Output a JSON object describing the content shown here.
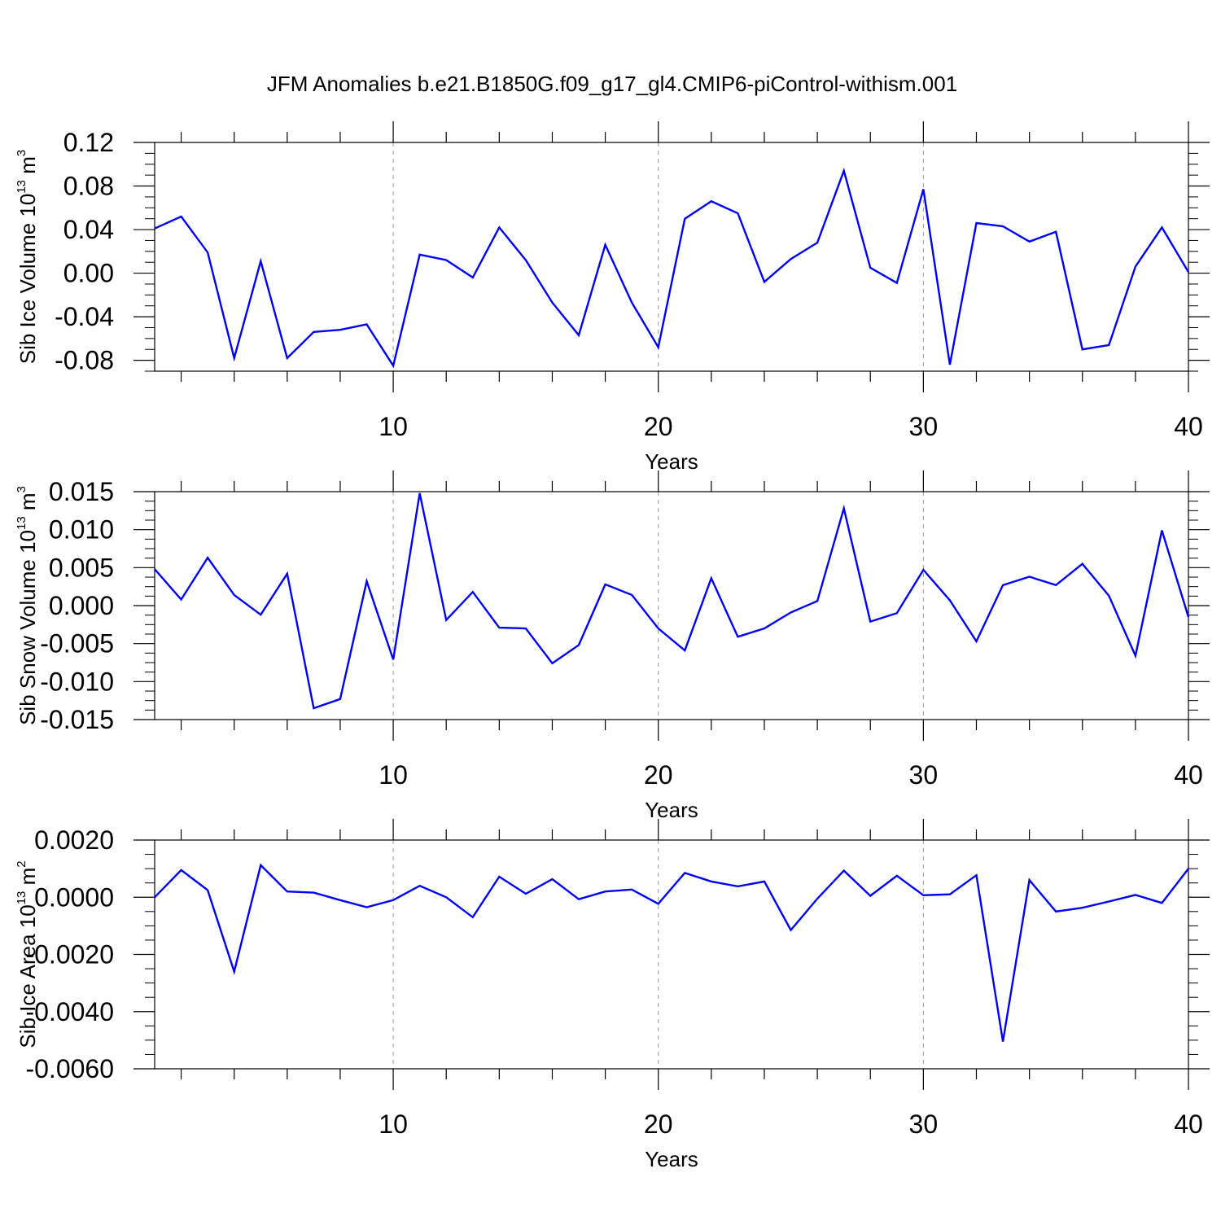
{
  "figure": {
    "title": "JFM Anomalies b.e21.B1850G.f09_g17_gl4.CMIP6-piControl-withism.001"
  },
  "colors": {
    "line": "#0000ff",
    "axis": "#000000",
    "grid": "#999999"
  },
  "chart_data": [
    {
      "type": "line",
      "ylabel_main": "Sib Ice Volume 10",
      "ylabel_exp": "13",
      "ylabel_unit": "m",
      "ylabel_unit_exp": "3",
      "xlabel": "Years",
      "xlim": [
        1,
        40
      ],
      "ylim": [
        -0.09,
        0.12
      ],
      "yticks": [
        0.12,
        0.08,
        0.04,
        0.0,
        -0.04,
        -0.08
      ],
      "ytick_labels": [
        "0.12",
        "0.08",
        "0.04",
        "0.00",
        "-0.04",
        "-0.08"
      ],
      "xticks": [
        10,
        20,
        30,
        40
      ],
      "xtick_labels": [
        "10",
        "20",
        "30",
        "40"
      ],
      "grid": "vertical dashed at 10, 20, 30",
      "x": [
        1,
        2,
        3,
        4,
        5,
        6,
        7,
        8,
        9,
        10,
        11,
        12,
        13,
        14,
        15,
        16,
        17,
        18,
        19,
        20,
        21,
        22,
        23,
        24,
        25,
        26,
        27,
        28,
        29,
        30,
        31,
        32,
        33,
        34,
        35,
        36,
        37,
        38,
        39,
        40
      ],
      "values": [
        0.041,
        0.052,
        0.019,
        -0.078,
        0.011,
        -0.078,
        -0.054,
        -0.052,
        -0.047,
        -0.085,
        0.017,
        0.012,
        -0.004,
        0.042,
        0.012,
        -0.027,
        -0.057,
        0.026,
        -0.027,
        -0.068,
        0.05,
        0.066,
        0.055,
        -0.008,
        0.013,
        0.028,
        0.094,
        0.005,
        -0.009,
        0.077,
        -0.084,
        0.046,
        0.043,
        0.029,
        0.038,
        -0.07,
        -0.066,
        0.006,
        0.042,
        0.001
      ]
    },
    {
      "type": "line",
      "ylabel_main": "Sib Snow Volume 10",
      "ylabel_exp": "13",
      "ylabel_unit": "m",
      "ylabel_unit_exp": "3",
      "xlabel": "Years",
      "xlim": [
        1,
        40
      ],
      "ylim": [
        -0.015,
        0.015
      ],
      "yticks": [
        0.015,
        0.01,
        0.005,
        0.0,
        -0.005,
        -0.01,
        -0.015
      ],
      "ytick_labels": [
        "0.015",
        "0.010",
        "0.005",
        "0.000",
        "-0.005",
        "-0.010",
        "-0.015"
      ],
      "xticks": [
        10,
        20,
        30,
        40
      ],
      "xtick_labels": [
        "10",
        "20",
        "30",
        "40"
      ],
      "grid": "vertical dashed at 10, 20, 30",
      "x": [
        1,
        2,
        3,
        4,
        5,
        6,
        7,
        8,
        9,
        10,
        11,
        12,
        13,
        14,
        15,
        16,
        17,
        18,
        19,
        20,
        21,
        22,
        23,
        24,
        25,
        26,
        27,
        28,
        29,
        30,
        31,
        32,
        33,
        34,
        35,
        36,
        37,
        38,
        39,
        40
      ],
      "values": [
        0.0048,
        0.0008,
        0.0063,
        0.0014,
        -0.0012,
        0.0042,
        -0.0135,
        -0.0123,
        0.0032,
        -0.0071,
        0.0148,
        -0.0019,
        0.0018,
        -0.0029,
        -0.003,
        -0.0076,
        -0.0052,
        0.0028,
        0.0014,
        -0.003,
        -0.0059,
        0.0036,
        -0.0041,
        -0.003,
        -0.0009,
        0.0006,
        0.0128,
        -0.0021,
        -0.001,
        0.0047,
        0.0007,
        -0.0047,
        0.0027,
        0.0038,
        0.0027,
        0.0055,
        0.0013,
        -0.0066,
        0.0099,
        -0.0015
      ]
    },
    {
      "type": "line",
      "ylabel_main": "Sib Ice Area 10",
      "ylabel_exp": "13",
      "ylabel_unit": "m",
      "ylabel_unit_exp": "2",
      "xlabel": "Years",
      "xlim": [
        1,
        40
      ],
      "ylim": [
        -0.006,
        0.002
      ],
      "yticks": [
        0.002,
        0.0,
        -0.002,
        -0.004,
        -0.006
      ],
      "ytick_labels": [
        "0.0020",
        "0.0000",
        "-0.0020",
        "-0.0040",
        "-0.0060"
      ],
      "xticks": [
        10,
        20,
        30,
        40
      ],
      "xtick_labels": [
        "10",
        "20",
        "30",
        "40"
      ],
      "grid": "vertical dashed at 10, 20, 30",
      "x": [
        1,
        2,
        3,
        4,
        5,
        6,
        7,
        8,
        9,
        10,
        11,
        12,
        13,
        14,
        15,
        16,
        17,
        18,
        19,
        20,
        21,
        22,
        23,
        24,
        25,
        26,
        27,
        28,
        29,
        30,
        31,
        32,
        33,
        34,
        35,
        36,
        37,
        38,
        39,
        40
      ],
      "values": [
        0.0,
        0.00095,
        0.00025,
        -0.0026,
        0.00112,
        0.0002,
        0.00016,
        -0.0001,
        -0.00035,
        -0.0001,
        0.0004,
        0.0,
        -0.0007,
        0.00072,
        0.00012,
        0.00063,
        -7e-05,
        0.0002,
        0.00027,
        -0.00023,
        0.00085,
        0.00055,
        0.00038,
        0.00055,
        -0.00115,
        -5e-05,
        0.00093,
        5e-05,
        0.00075,
        7e-05,
        0.0001,
        0.00077,
        -0.00505,
        0.0006,
        -0.0005,
        -0.00037,
        -0.00015,
        8e-05,
        -0.0002,
        0.001
      ]
    }
  ]
}
